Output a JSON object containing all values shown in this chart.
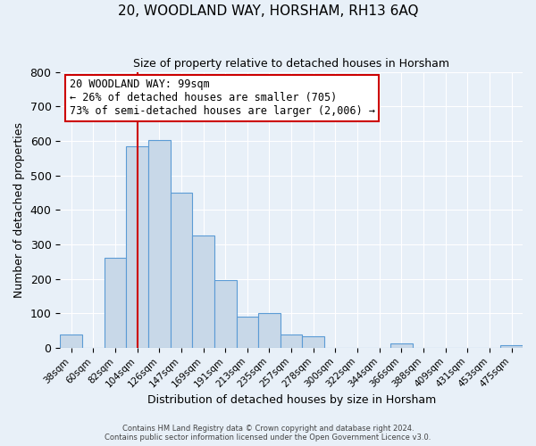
{
  "title": "20, WOODLAND WAY, HORSHAM, RH13 6AQ",
  "subtitle": "Size of property relative to detached houses in Horsham",
  "xlabel": "Distribution of detached houses by size in Horsham",
  "ylabel": "Number of detached properties",
  "bar_labels": [
    "38sqm",
    "60sqm",
    "82sqm",
    "104sqm",
    "126sqm",
    "147sqm",
    "169sqm",
    "191sqm",
    "213sqm",
    "235sqm",
    "257sqm",
    "278sqm",
    "300sqm",
    "322sqm",
    "344sqm",
    "366sqm",
    "388sqm",
    "409sqm",
    "431sqm",
    "453sqm",
    "475sqm"
  ],
  "bar_values": [
    38,
    0,
    262,
    583,
    602,
    450,
    325,
    197,
    91,
    100,
    38,
    32,
    0,
    0,
    0,
    12,
    0,
    0,
    0,
    0,
    8
  ],
  "bar_color": "#c8d8e8",
  "bar_edge_color": "#5b9bd5",
  "vline_x": 3.0,
  "vline_color": "#cc0000",
  "annotation_line1": "20 WOODLAND WAY: 99sqm",
  "annotation_line2": "← 26% of detached houses are smaller (705)",
  "annotation_line3": "73% of semi-detached houses are larger (2,006) →",
  "annotation_box_edge_color": "#cc0000",
  "ylim": [
    0,
    800
  ],
  "yticks": [
    0,
    100,
    200,
    300,
    400,
    500,
    600,
    700,
    800
  ],
  "footer_line1": "Contains HM Land Registry data © Crown copyright and database right 2024.",
  "footer_line2": "Contains public sector information licensed under the Open Government Licence v3.0.",
  "background_color": "#e8f0f8",
  "plot_bg_color": "#e8f0f8"
}
